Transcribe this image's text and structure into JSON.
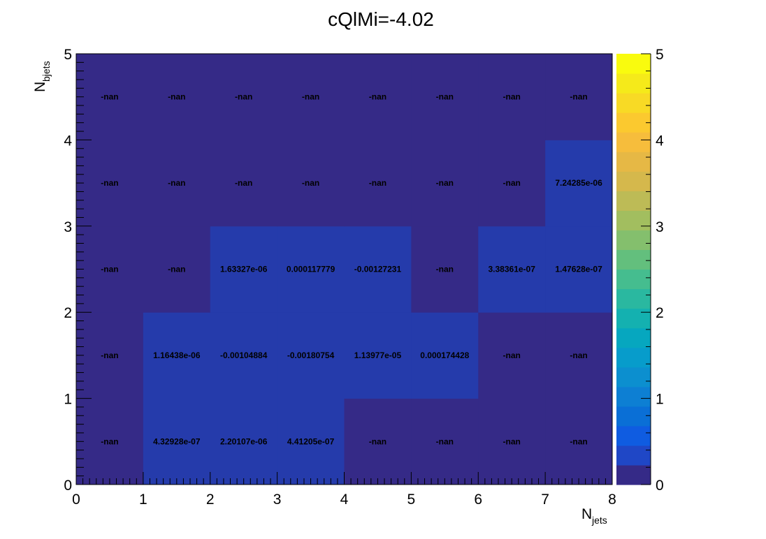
{
  "chart_data": {
    "type": "heatmap",
    "title": "cQlMi=-4.02",
    "xlabel": {
      "main": "N",
      "sub": "jets"
    },
    "ylabel": {
      "main": "N",
      "sub": "bjets"
    },
    "xlim": [
      0,
      8
    ],
    "ylim": [
      0,
      5
    ],
    "x_ticks": [
      "0",
      "1",
      "2",
      "3",
      "4",
      "5",
      "6",
      "7",
      "8"
    ],
    "y_ticks": [
      "0",
      "1",
      "2",
      "3",
      "4",
      "5"
    ],
    "colorbar": {
      "range": [
        0,
        5
      ],
      "ticks": [
        "0",
        "1",
        "2",
        "3",
        "4",
        "5"
      ]
    },
    "colors": {
      "background_cell": "#352a87",
      "filled_cell": "#253bab"
    },
    "cells": [
      {
        "x": 0,
        "y": 0,
        "label": "-nan",
        "filled": false
      },
      {
        "x": 1,
        "y": 0,
        "label": "4.32928e-07",
        "filled": true
      },
      {
        "x": 2,
        "y": 0,
        "label": "2.20107e-06",
        "filled": true
      },
      {
        "x": 3,
        "y": 0,
        "label": "4.41205e-07",
        "filled": true
      },
      {
        "x": 4,
        "y": 0,
        "label": "-nan",
        "filled": false
      },
      {
        "x": 5,
        "y": 0,
        "label": "-nan",
        "filled": false
      },
      {
        "x": 6,
        "y": 0,
        "label": "-nan",
        "filled": false
      },
      {
        "x": 7,
        "y": 0,
        "label": "-nan",
        "filled": false
      },
      {
        "x": 0,
        "y": 1,
        "label": "-nan",
        "filled": false
      },
      {
        "x": 1,
        "y": 1,
        "label": "1.16438e-06",
        "filled": true
      },
      {
        "x": 2,
        "y": 1,
        "label": "-0.00104884",
        "filled": true
      },
      {
        "x": 3,
        "y": 1,
        "label": "-0.00180754",
        "filled": true
      },
      {
        "x": 4,
        "y": 1,
        "label": "1.13977e-05",
        "filled": true
      },
      {
        "x": 5,
        "y": 1,
        "label": "0.000174428",
        "filled": true
      },
      {
        "x": 6,
        "y": 1,
        "label": "-nan",
        "filled": false
      },
      {
        "x": 7,
        "y": 1,
        "label": "-nan",
        "filled": false
      },
      {
        "x": 0,
        "y": 2,
        "label": "-nan",
        "filled": false
      },
      {
        "x": 1,
        "y": 2,
        "label": "-nan",
        "filled": false
      },
      {
        "x": 2,
        "y": 2,
        "label": "1.63327e-06",
        "filled": true
      },
      {
        "x": 3,
        "y": 2,
        "label": "0.000117779",
        "filled": true
      },
      {
        "x": 4,
        "y": 2,
        "label": "-0.00127231",
        "filled": true
      },
      {
        "x": 5,
        "y": 2,
        "label": "-nan",
        "filled": false
      },
      {
        "x": 6,
        "y": 2,
        "label": "3.38361e-07",
        "filled": true
      },
      {
        "x": 7,
        "y": 2,
        "label": "1.47628e-07",
        "filled": true
      },
      {
        "x": 0,
        "y": 3,
        "label": "-nan",
        "filled": false
      },
      {
        "x": 1,
        "y": 3,
        "label": "-nan",
        "filled": false
      },
      {
        "x": 2,
        "y": 3,
        "label": "-nan",
        "filled": false
      },
      {
        "x": 3,
        "y": 3,
        "label": "-nan",
        "filled": false
      },
      {
        "x": 4,
        "y": 3,
        "label": "-nan",
        "filled": false
      },
      {
        "x": 5,
        "y": 3,
        "label": "-nan",
        "filled": false
      },
      {
        "x": 6,
        "y": 3,
        "label": "-nan",
        "filled": false
      },
      {
        "x": 7,
        "y": 3,
        "label": "7.24285e-06",
        "filled": true
      },
      {
        "x": 0,
        "y": 4,
        "label": "-nan",
        "filled": false
      },
      {
        "x": 1,
        "y": 4,
        "label": "-nan",
        "filled": false
      },
      {
        "x": 2,
        "y": 4,
        "label": "-nan",
        "filled": false
      },
      {
        "x": 3,
        "y": 4,
        "label": "-nan",
        "filled": false
      },
      {
        "x": 4,
        "y": 4,
        "label": "-nan",
        "filled": false
      },
      {
        "x": 5,
        "y": 4,
        "label": "-nan",
        "filled": false
      },
      {
        "x": 6,
        "y": 4,
        "label": "-nan",
        "filled": false
      },
      {
        "x": 7,
        "y": 4,
        "label": "-nan",
        "filled": false
      }
    ]
  }
}
